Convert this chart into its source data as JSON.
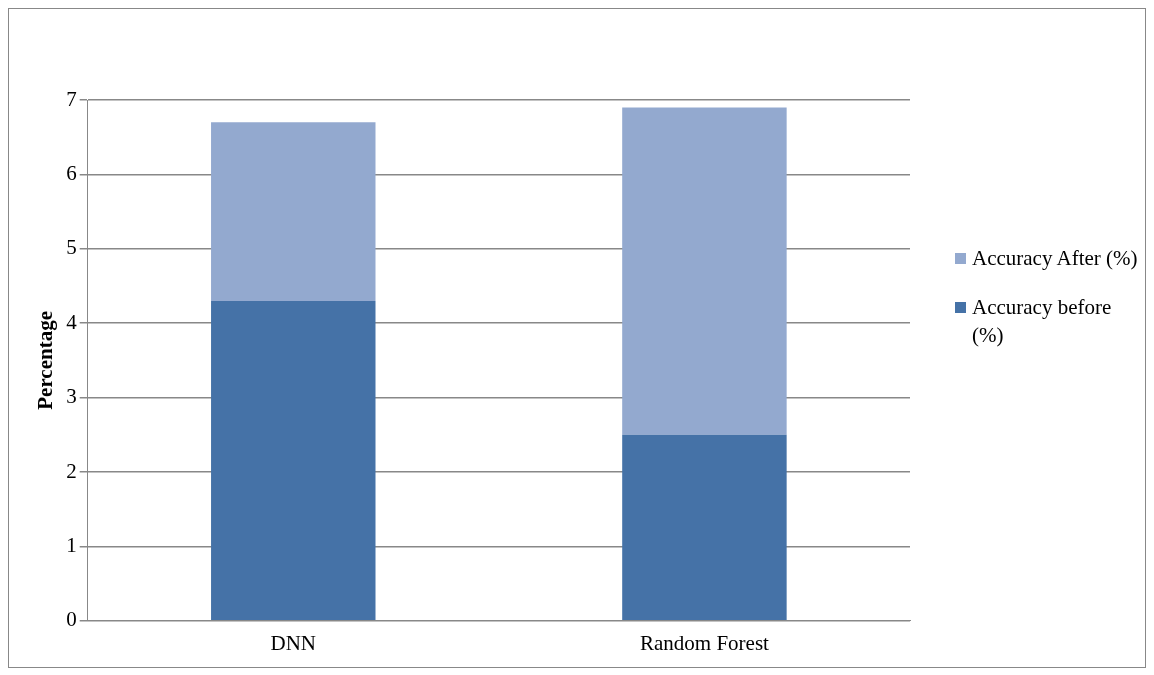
{
  "chart_data": {
    "type": "bar",
    "stacked": true,
    "ylabel": "Percentage",
    "categories": [
      "DNN",
      "Random Forest"
    ],
    "series": [
      {
        "name": "Accuracy before (%)",
        "color": "#4572a7",
        "values": [
          4.3,
          2.5
        ]
      },
      {
        "name": "Accuracy After (%)",
        "color": "#93a9cf",
        "values": [
          2.4,
          4.4
        ]
      }
    ],
    "ylim": [
      0,
      7
    ],
    "yticks": [
      0,
      1,
      2,
      3,
      4,
      5,
      6,
      7
    ],
    "grid": "y",
    "legend": "right"
  }
}
